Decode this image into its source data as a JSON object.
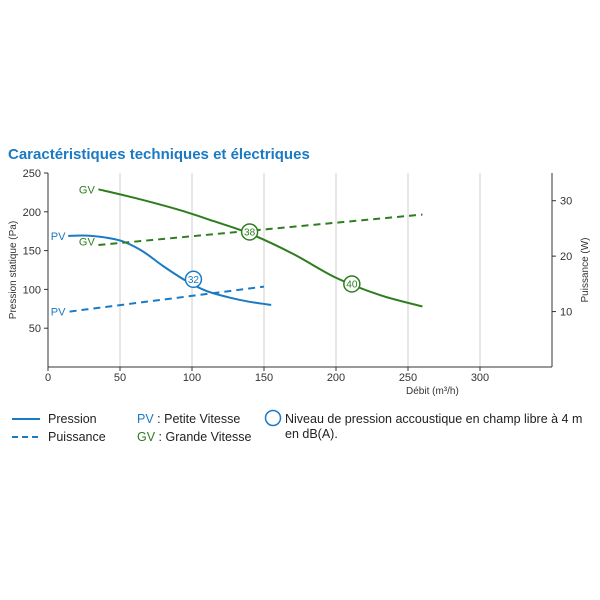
{
  "title": "Caractéristiques techniques et électriques",
  "colors": {
    "pv": "#1a7ac4",
    "gv": "#2e7d1e",
    "title": "#1a7ac4",
    "grid": "#cfcfcf"
  },
  "chart_data": {
    "type": "line",
    "title": "Caractéristiques techniques et électriques",
    "xlabel": "Débit (m³/h)",
    "ylabel": "Pression statique (Pa)",
    "y2label": "Puissance (W)",
    "xlim": [
      0,
      350
    ],
    "ylim": [
      0,
      250
    ],
    "y2lim": [
      0,
      35
    ],
    "x_ticks": [
      0,
      50,
      100,
      150,
      200,
      250,
      300
    ],
    "y_ticks": [
      50,
      100,
      150,
      200,
      250
    ],
    "y2_ticks": [
      10,
      20,
      30
    ],
    "grid": "vertical",
    "series": [
      {
        "name": "PV",
        "kind": "Pression",
        "axis": "left",
        "color": "#1a7ac4",
        "dash": false,
        "x": [
          14,
          30,
          50,
          65,
          80,
          95,
          110,
          125,
          140,
          155
        ],
        "y": [
          169,
          169,
          163,
          150,
          130,
          112,
          98,
          90,
          84,
          80
        ]
      },
      {
        "name": "GV",
        "kind": "Pression",
        "axis": "left",
        "color": "#2e7d1e",
        "dash": false,
        "x": [
          35,
          60,
          90,
          115,
          140,
          170,
          200,
          230,
          260
        ],
        "y": [
          229,
          218,
          203,
          188,
          172,
          146,
          115,
          93,
          78
        ]
      },
      {
        "name": "PV",
        "kind": "Puissance",
        "axis": "right",
        "color": "#1a7ac4",
        "dash": true,
        "x": [
          15,
          150
        ],
        "y": [
          10.0,
          14.5
        ]
      },
      {
        "name": "GV",
        "kind": "Puissance",
        "axis": "right",
        "color": "#2e7d1e",
        "dash": true,
        "x": [
          35,
          260
        ],
        "y": [
          22.0,
          27.5
        ]
      }
    ],
    "series_labels": [
      {
        "text": "GV",
        "color": "#2e7d1e",
        "x": 27,
        "y": 229,
        "axis": "left"
      },
      {
        "text": "GV",
        "color": "#2e7d1e",
        "x": 27,
        "y": 22.6,
        "axis": "right"
      },
      {
        "text": "PV",
        "color": "#1a7ac4",
        "x": 7,
        "y": 169,
        "axis": "left"
      },
      {
        "text": "PV",
        "color": "#1a7ac4",
        "x": 7,
        "y": 10.0,
        "axis": "right"
      }
    ],
    "annotations": [
      {
        "text": "32",
        "x": 101,
        "y": 113,
        "color": "#1a7ac4"
      },
      {
        "text": "38",
        "x": 140,
        "y": 174,
        "color": "#2e7d1e"
      },
      {
        "text": "40",
        "x": 211,
        "y": 107,
        "color": "#2e7d1e"
      }
    ]
  },
  "legend": {
    "pression": "Pression",
    "puissance": "Puissance",
    "pv_code": "PV",
    "pv_text": " : Petite Vitesse",
    "gv_code": "GV",
    "gv_text": " : Grande Vitesse",
    "circle_line1": "Niveau de pression accoustique en champ libre à 4 m",
    "circle_line2": "en dB(A)."
  }
}
